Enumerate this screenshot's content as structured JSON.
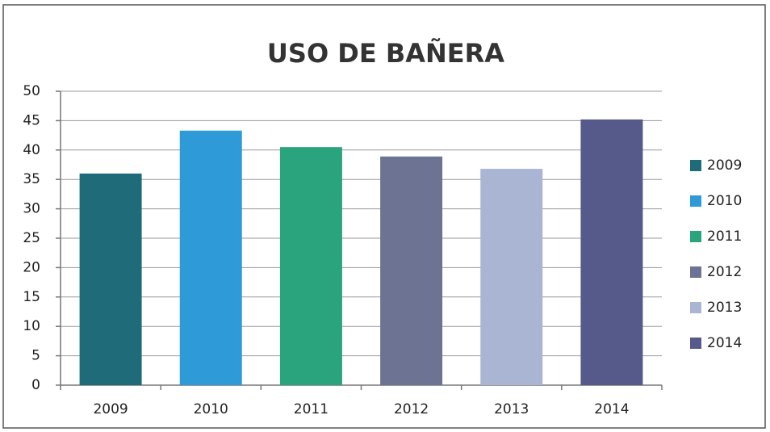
{
  "chart_data": {
    "type": "bar",
    "title": "USO DE BAÑERA",
    "categories": [
      "2009",
      "2010",
      "2011",
      "2012",
      "2013",
      "2014"
    ],
    "values": [
      36,
      43.3,
      40.5,
      38.9,
      36.8,
      45.2
    ],
    "colors": [
      "#1f6b7a",
      "#2e9ad8",
      "#2aa47c",
      "#6c7393",
      "#aab5d3",
      "#565a8a"
    ],
    "ylim": [
      0,
      50
    ],
    "yticks": [
      0,
      5,
      10,
      15,
      20,
      25,
      30,
      35,
      40,
      45,
      50
    ],
    "grid": true,
    "legend": "right"
  }
}
